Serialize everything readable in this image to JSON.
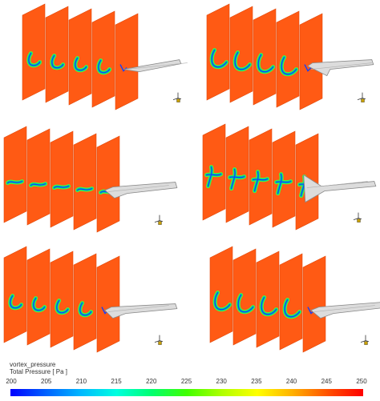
{
  "legend": {
    "name": "vortex_pressure",
    "quantity": "Total Pressure [ Pa ]",
    "ticks": [
      "200",
      "205",
      "210",
      "215",
      "220",
      "225",
      "230",
      "235",
      "240",
      "245",
      "250"
    ],
    "stops": [
      "#0000ff",
      "#0060ff",
      "#00b8ff",
      "#00ffe0",
      "#00ff70",
      "#40ff00",
      "#b0ff00",
      "#ffff00",
      "#ffb000",
      "#ff5000",
      "#ff0000"
    ]
  },
  "colors": {
    "field": "#ff5a14",
    "field_edge": "#e04a0c",
    "vortex_core": "#00c8a0",
    "vortex_ring": "#40ff40",
    "vortex_low": "#1040ff",
    "blade_face": "#dcdcdc",
    "blade_edge": "#888888"
  },
  "icon": "axis-triad-icon"
}
